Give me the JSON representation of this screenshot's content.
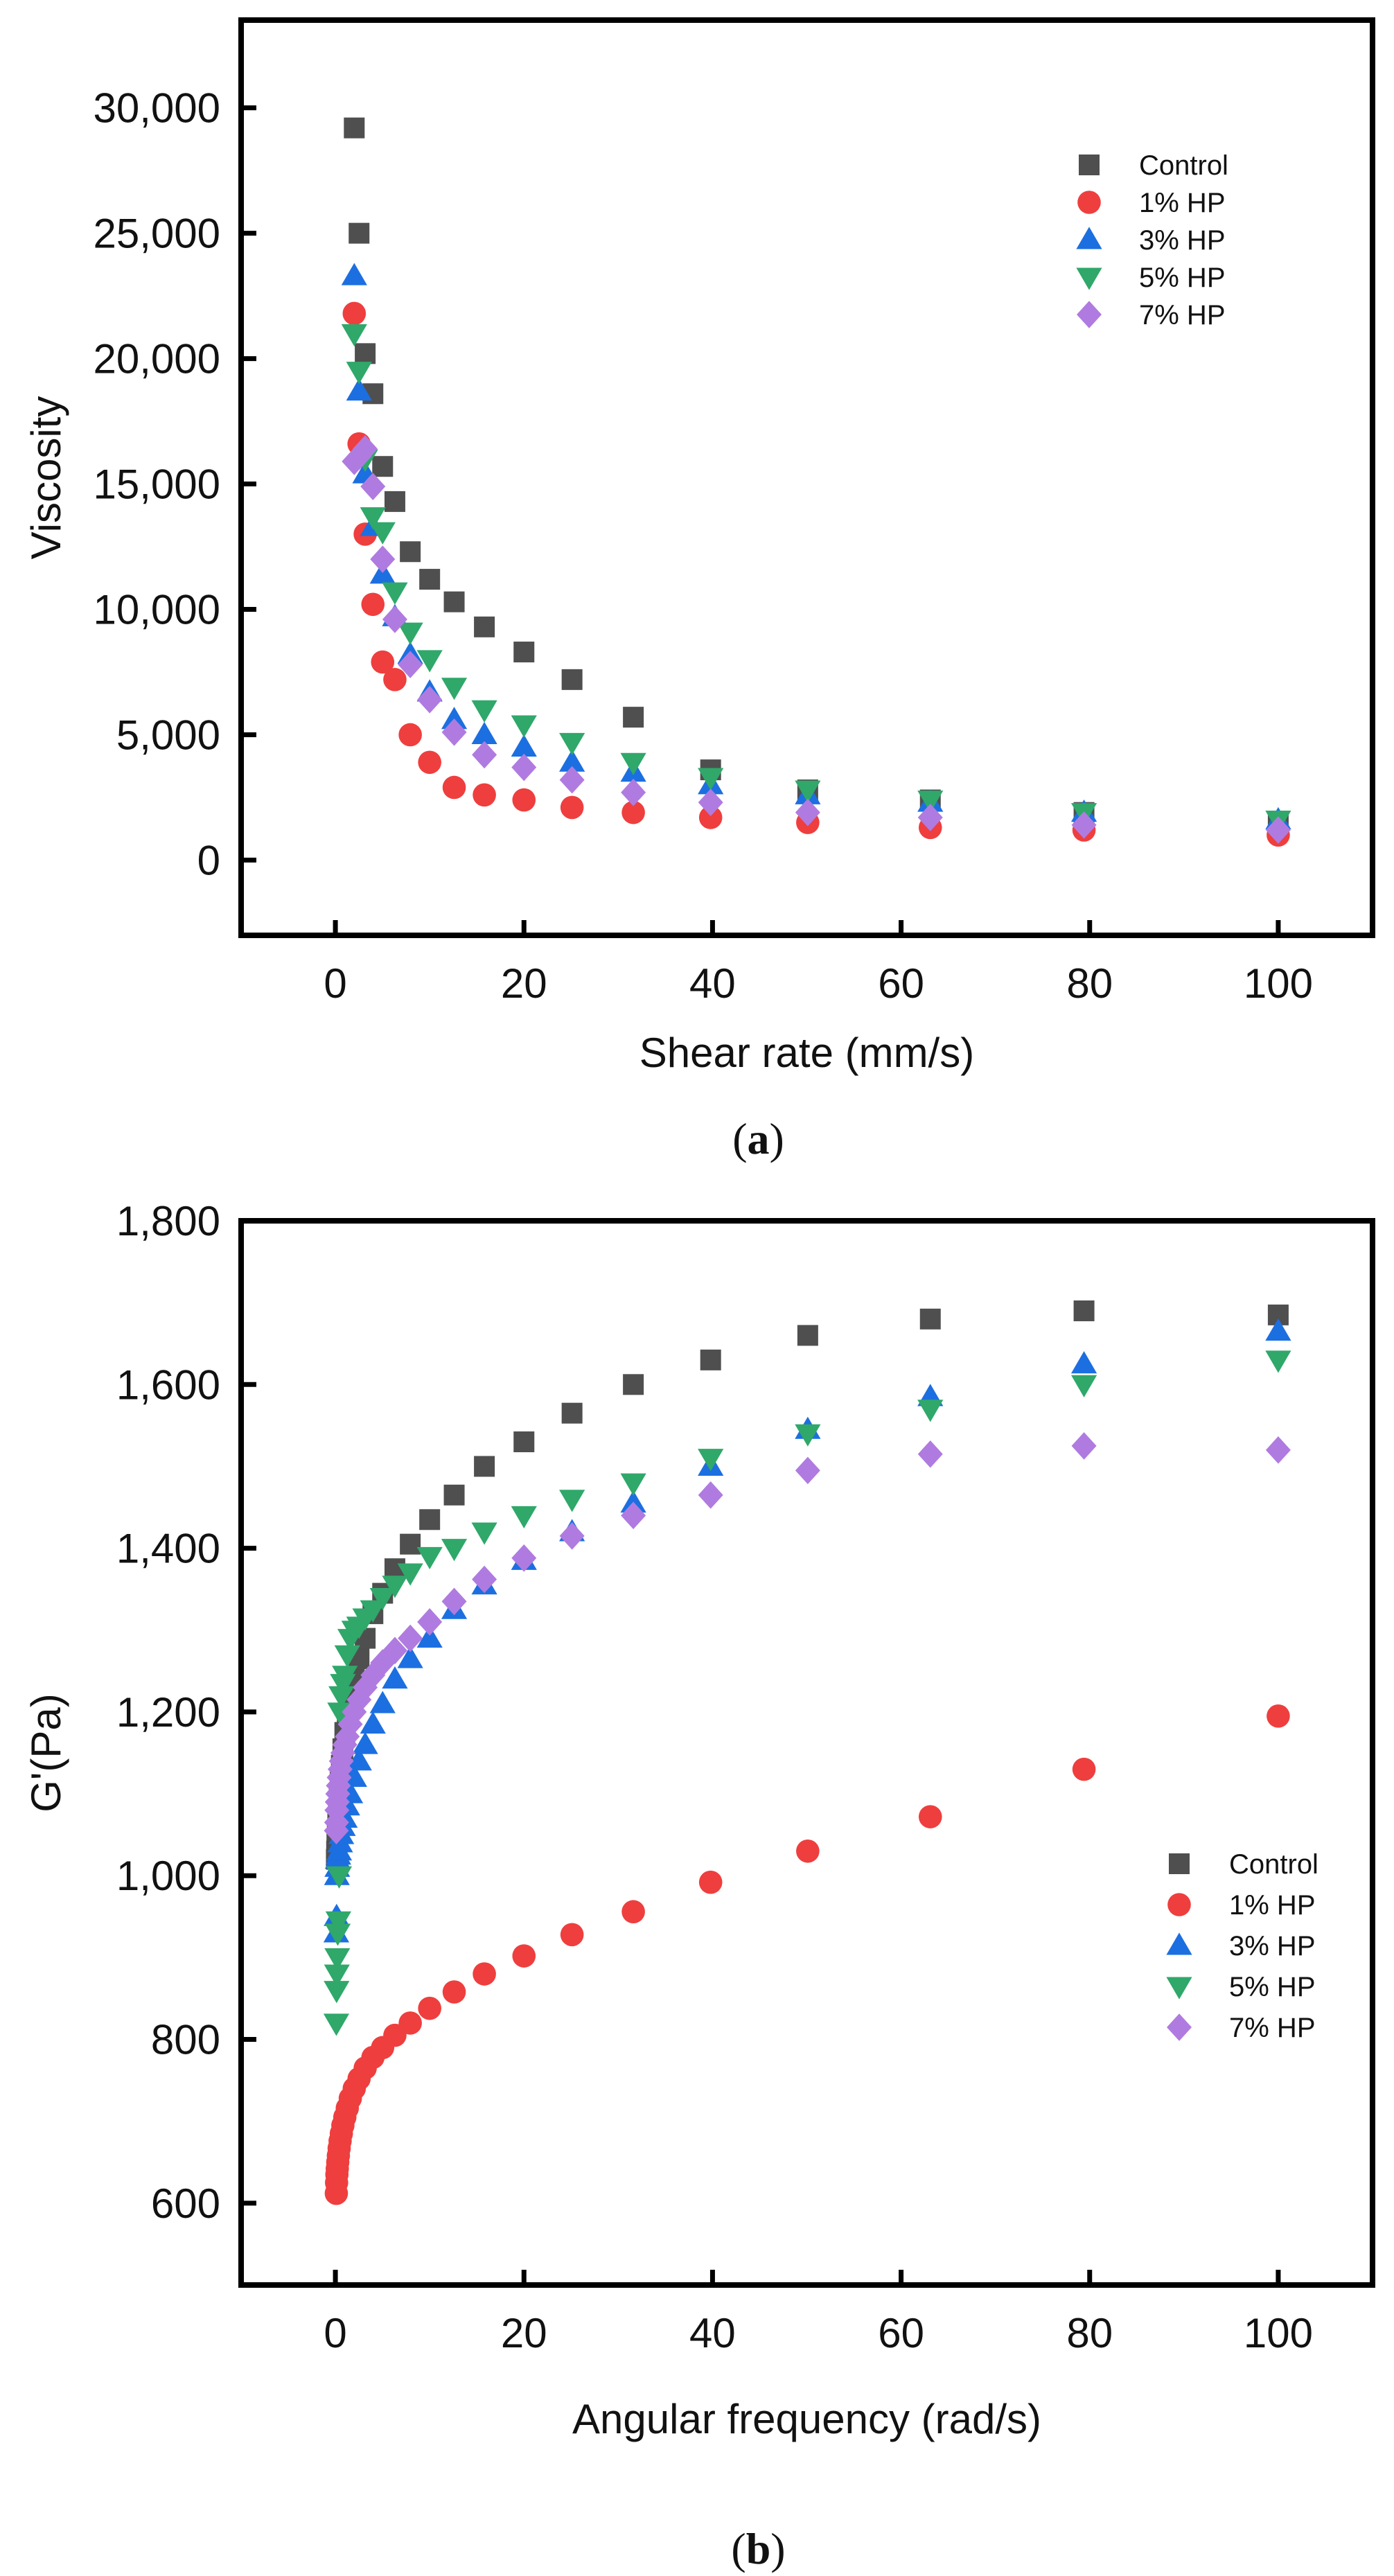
{
  "colors": {
    "Control": "#4f4f4f",
    "1% HP": "#ef3e3e",
    "3% HP": "#1c6fe0",
    "5% HP": "#2fa86a",
    "7% HP": "#b07be0"
  },
  "chart_data": [
    {
      "type": "scatter",
      "caption": "(a)",
      "caption_letter": "a",
      "xlabel": "Shear rate (mm/s)",
      "ylabel": "Viscosity",
      "xlim": [
        -10,
        110
      ],
      "ylim": [
        -3000,
        33500
      ],
      "xticks": [
        0,
        20,
        40,
        60,
        80,
        100
      ],
      "xtick_labels": [
        "0",
        "20",
        "40",
        "60",
        "80",
        "100"
      ],
      "yticks": [
        0,
        5000,
        10000,
        15000,
        20000,
        25000,
        30000
      ],
      "ytick_labels": [
        "0",
        "5,000",
        "10,000",
        "15,000",
        "20,000",
        "25,000",
        "30,000"
      ],
      "legend_position": "top-right",
      "grid": false,
      "x": [
        2,
        2.51,
        3.16,
        3.98,
        5.01,
        6.31,
        7.94,
        10,
        12.6,
        15.8,
        20,
        25.1,
        31.6,
        39.8,
        50.1,
        63.1,
        79.4,
        100
      ],
      "series": [
        {
          "name": "Control",
          "marker": "square",
          "values": [
            29200,
            25000,
            20200,
            18600,
            15700,
            14300,
            12300,
            11200,
            10300,
            9300,
            8300,
            7200,
            5700,
            3600,
            2800,
            2400,
            1900,
            1500
          ]
        },
        {
          "name": "1% HP",
          "marker": "circle",
          "values": [
            21800,
            16600,
            13000,
            10200,
            7900,
            7200,
            5000,
            3900,
            2900,
            2600,
            2400,
            2100,
            1900,
            1700,
            1500,
            1300,
            1200,
            1000
          ]
        },
        {
          "name": "3% HP",
          "marker": "triangle-up",
          "values": [
            23300,
            18700,
            15400,
            13300,
            11400,
            9700,
            8200,
            6700,
            5600,
            5000,
            4500,
            3900,
            3500,
            3000,
            2600,
            2300,
            1900,
            1600
          ]
        },
        {
          "name": "5% HP",
          "marker": "triangle-down",
          "values": [
            21000,
            19500,
            16000,
            13700,
            13100,
            10700,
            9100,
            8000,
            6900,
            6000,
            5400,
            4700,
            3900,
            3300,
            2800,
            2400,
            1900,
            1600
          ]
        },
        {
          "name": "7% HP",
          "marker": "diamond",
          "values": [
            15900,
            16100,
            16400,
            14900,
            12000,
            9600,
            7800,
            6400,
            5100,
            4200,
            3700,
            3200,
            2700,
            2300,
            1900,
            1700,
            1400,
            1200
          ]
        }
      ]
    },
    {
      "type": "scatter",
      "caption": "(b)",
      "caption_letter": "b",
      "xlabel": "Angular frequency (rad/s)",
      "ylabel": "G'(Pa)",
      "xlim": [
        -10,
        110
      ],
      "ylim": [
        500,
        1800
      ],
      "xticks": [
        0,
        20,
        40,
        60,
        80,
        100
      ],
      "xtick_labels": [
        "0",
        "20",
        "40",
        "60",
        "80",
        "100"
      ],
      "yticks": [
        600,
        800,
        1000,
        1200,
        1400,
        1600,
        1800
      ],
      "ytick_labels": [
        "600",
        "800",
        "1,000",
        "1,200",
        "1,400",
        "1,600",
        "1,800"
      ],
      "legend_position": "bottom-right",
      "grid": false,
      "x": [
        0.1,
        0.126,
        0.158,
        0.2,
        0.251,
        0.316,
        0.398,
        0.501,
        0.631,
        0.794,
        1,
        1.26,
        1.58,
        2,
        2.51,
        3.16,
        3.98,
        5.01,
        6.31,
        7.94,
        10,
        12.6,
        15.8,
        20,
        25.1,
        31.6,
        39.8,
        50.1,
        63.1,
        79.4,
        100
      ],
      "series": [
        {
          "name": "Control",
          "marker": "square",
          "values": [
            1020,
            1030,
            1040,
            1050,
            1065,
            1080,
            1095,
            1115,
            1135,
            1155,
            1175,
            1195,
            1220,
            1240,
            1265,
            1290,
            1320,
            1345,
            1375,
            1405,
            1435,
            1465,
            1500,
            1530,
            1565,
            1600,
            1630,
            1660,
            1680,
            1690,
            1685
          ]
        },
        {
          "name": "1% HP",
          "marker": "circle",
          "values": [
            612,
            625,
            635,
            642,
            650,
            658,
            667,
            676,
            685,
            695,
            705,
            716,
            728,
            740,
            752,
            765,
            778,
            790,
            805,
            820,
            838,
            858,
            880,
            902,
            928,
            956,
            992,
            1030,
            1072,
            1130,
            1195
          ]
        },
        {
          "name": "3% HP",
          "marker": "triangle-up",
          "values": [
            930,
            950,
            1000,
            1010,
            1020,
            1025,
            1030,
            1040,
            1050,
            1060,
            1070,
            1085,
            1100,
            1120,
            1140,
            1160,
            1185,
            1210,
            1240,
            1265,
            1290,
            1325,
            1355,
            1385,
            1420,
            1455,
            1500,
            1545,
            1585,
            1625,
            1665
          ]
        },
        {
          "name": "5% HP",
          "marker": "triangle-down",
          "values": [
            820,
            860,
            880,
            900,
            930,
            945,
            1000,
            1200,
            1220,
            1235,
            1245,
            1270,
            1290,
            1300,
            1305,
            1315,
            1325,
            1340,
            1355,
            1370,
            1390,
            1400,
            1420,
            1440,
            1460,
            1480,
            1510,
            1540,
            1570,
            1600,
            1630
          ]
        },
        {
          "name": "7% HP",
          "marker": "diamond",
          "values": [
            1055,
            1065,
            1080,
            1090,
            1100,
            1110,
            1120,
            1130,
            1140,
            1150,
            1160,
            1170,
            1185,
            1200,
            1215,
            1230,
            1245,
            1260,
            1275,
            1290,
            1310,
            1335,
            1362,
            1388,
            1415,
            1440,
            1465,
            1495,
            1515,
            1525,
            1520
          ]
        }
      ]
    }
  ]
}
